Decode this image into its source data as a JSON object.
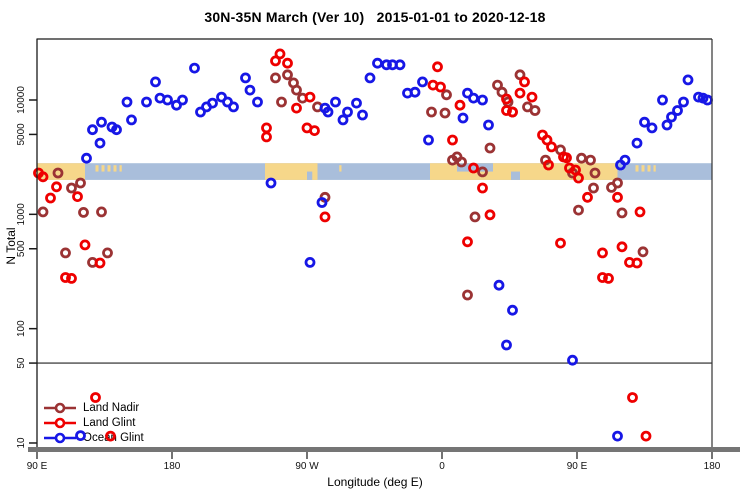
{
  "title": "30N-35N March (Ver 10)   2015-01-01 to 2020-12-18",
  "axes": {
    "y": {
      "label": "N Total",
      "ticks": [
        10,
        50,
        100,
        500,
        1000,
        5000,
        10000
      ]
    },
    "x": {
      "label": "Longitude (deg E)",
      "ticks": [
        {
          "deg": 90,
          "label": "90 E"
        },
        {
          "deg": 180,
          "label": "180"
        },
        {
          "deg": 270,
          "label": "90 W"
        },
        {
          "deg": 360,
          "label": "0"
        },
        {
          "deg": 450,
          "label": "90 E"
        },
        {
          "deg": 540,
          "label": "180"
        }
      ]
    }
  },
  "legend": {
    "items": [
      {
        "key": "land_nadir",
        "label": "Land Nadir"
      },
      {
        "key": "land_glint",
        "label": "Land Glint"
      },
      {
        "key": "ocean_glint",
        "label": "Ocean Glint"
      }
    ]
  },
  "colors": {
    "land_nadir": "#9B3334",
    "land_glint": "#EE0000",
    "ocean_glint": "#1717E6",
    "map_ocean": "#A9BEDB",
    "map_land": "#F6D78A",
    "spine": "#1a1a1a",
    "axis_bar": "#757575",
    "tick": "#444444"
  },
  "chart_data": {
    "type": "scatter",
    "title": "30N-35N March (Ver 10)   2015-01-01 to 2020-12-18",
    "xlabel": "Longitude (deg E)",
    "ylabel": "N Total",
    "x_axis_deg_range": [
      90,
      540
    ],
    "x_axis_note": "longitude axis wraps eastward: 90E, 180, 90W, 0, 90E, 180",
    "y_scale": "log10",
    "y_range": [
      8.5,
      29000
    ],
    "reference_line_y": 50,
    "map_strip": {
      "value_top": 2800,
      "value_bottom": 2000,
      "land_segments_deg": [
        [
          90,
          122
        ],
        [
          242,
          277
        ],
        [
          352,
          477
        ]
      ],
      "island_specks_deg": [
        [
          129,
          131
        ],
        [
          133,
          135
        ],
        [
          137,
          139
        ],
        [
          141,
          143
        ],
        [
          145,
          146.5
        ],
        [
          291.5,
          293
        ],
        [
          489,
          491
        ],
        [
          493,
          495
        ],
        [
          497,
          499
        ],
        [
          501,
          502.5
        ]
      ],
      "ocean_notches": [
        {
          "deg": [
            370,
            394
          ],
          "half": "top"
        },
        {
          "deg": [
            406,
            412
          ],
          "half": "bottom"
        },
        {
          "deg": [
            270,
            273.5
          ],
          "half": "bottom"
        }
      ]
    },
    "series": [
      {
        "name": "Land Nadir",
        "color_key": "land_nadir",
        "points": [
          [
            94,
            1050
          ],
          [
            104,
            2300
          ],
          [
            109,
            460
          ],
          [
            113,
            1700
          ],
          [
            119,
            1880
          ],
          [
            121,
            1040
          ],
          [
            127,
            380
          ],
          [
            133,
            1050
          ],
          [
            137,
            460
          ],
          [
            249,
            15600
          ],
          [
            253,
            9600
          ],
          [
            257,
            16600
          ],
          [
            261,
            14100
          ],
          [
            263,
            12200
          ],
          [
            267,
            10400
          ],
          [
            277,
            8700
          ],
          [
            282,
            1410
          ],
          [
            353,
            7850
          ],
          [
            362,
            7700
          ],
          [
            363,
            11100
          ],
          [
            367,
            2980
          ],
          [
            370,
            3180
          ],
          [
            373,
            2870
          ],
          [
            377,
            197
          ],
          [
            382,
            950
          ],
          [
            387,
            2350
          ],
          [
            392,
            3800
          ],
          [
            397,
            13500
          ],
          [
            400,
            11700
          ],
          [
            404,
            9600
          ],
          [
            407,
            7850
          ],
          [
            412,
            16600
          ],
          [
            417,
            8700
          ],
          [
            422,
            8100
          ],
          [
            429,
            2980
          ],
          [
            439,
            3660
          ],
          [
            447,
            2300
          ],
          [
            451,
            1090
          ],
          [
            453,
            3100
          ],
          [
            459,
            2980
          ],
          [
            461,
            1700
          ],
          [
            462,
            2300
          ],
          [
            473,
            1720
          ],
          [
            477,
            1880
          ],
          [
            480,
            1030
          ],
          [
            494,
            470
          ]
        ]
      },
      {
        "name": "Land Glint",
        "color_key": "land_glint",
        "points": [
          [
            91,
            2300
          ],
          [
            94,
            2130
          ],
          [
            99,
            1390
          ],
          [
            103,
            1740
          ],
          [
            109,
            280
          ],
          [
            113,
            275
          ],
          [
            117,
            1430
          ],
          [
            122,
            540
          ],
          [
            129,
            25
          ],
          [
            132,
            375
          ],
          [
            139,
            11.5
          ],
          [
            243,
            5700
          ],
          [
            243,
            4760
          ],
          [
            249,
            22000
          ],
          [
            252,
            25300
          ],
          [
            257,
            21000
          ],
          [
            263,
            8500
          ],
          [
            270,
            5700
          ],
          [
            272,
            10600
          ],
          [
            275,
            5400
          ],
          [
            282,
            950
          ],
          [
            354,
            13500
          ],
          [
            357,
            19500
          ],
          [
            359,
            13000
          ],
          [
            367,
            4470
          ],
          [
            372,
            9000
          ],
          [
            377,
            575
          ],
          [
            381,
            2540
          ],
          [
            387,
            1700
          ],
          [
            392,
            990
          ],
          [
            403,
            10200
          ],
          [
            403,
            8100
          ],
          [
            407,
            7850
          ],
          [
            412,
            11500
          ],
          [
            415,
            14400
          ],
          [
            420,
            10600
          ],
          [
            427,
            4940
          ],
          [
            430,
            4470
          ],
          [
            431,
            2700
          ],
          [
            433,
            3890
          ],
          [
            439,
            560
          ],
          [
            441,
            3180
          ],
          [
            443,
            3120
          ],
          [
            445,
            2540
          ],
          [
            449,
            2440
          ],
          [
            451,
            2080
          ],
          [
            457,
            1410
          ],
          [
            467,
            460
          ],
          [
            467,
            280
          ],
          [
            471,
            275
          ],
          [
            477,
            1410
          ],
          [
            480,
            520
          ],
          [
            485,
            380
          ],
          [
            487,
            25
          ],
          [
            490,
            375
          ],
          [
            492,
            1050
          ],
          [
            496,
            11.5
          ]
        ]
      },
      {
        "name": "Ocean Glint",
        "color_key": "ocean_glint",
        "points": [
          [
            119,
            11.6
          ],
          [
            123,
            3100
          ],
          [
            127,
            5500
          ],
          [
            132,
            4200
          ],
          [
            133,
            6400
          ],
          [
            140,
            5800
          ],
          [
            143,
            5500
          ],
          [
            150,
            9600
          ],
          [
            153,
            6700
          ],
          [
            163,
            9600
          ],
          [
            169,
            14400
          ],
          [
            172,
            10400
          ],
          [
            177,
            10000
          ],
          [
            183,
            9000
          ],
          [
            187,
            10000
          ],
          [
            195,
            19000
          ],
          [
            199,
            7850
          ],
          [
            203,
            8700
          ],
          [
            207,
            9400
          ],
          [
            213,
            10600
          ],
          [
            217,
            9600
          ],
          [
            221,
            8700
          ],
          [
            229,
            15600
          ],
          [
            232,
            12200
          ],
          [
            237,
            9600
          ],
          [
            246,
            1880
          ],
          [
            272,
            380
          ],
          [
            280,
            1270
          ],
          [
            282,
            8500
          ],
          [
            284,
            7850
          ],
          [
            289,
            9600
          ],
          [
            294,
            6700
          ],
          [
            297,
            7850
          ],
          [
            303,
            9400
          ],
          [
            307,
            7400
          ],
          [
            312,
            15600
          ],
          [
            317,
            21000
          ],
          [
            323,
            20300
          ],
          [
            327,
            20300
          ],
          [
            332,
            20300
          ],
          [
            337,
            11500
          ],
          [
            342,
            11700
          ],
          [
            347,
            14400
          ],
          [
            351,
            4470
          ],
          [
            374,
            6960
          ],
          [
            377,
            11500
          ],
          [
            381,
            10400
          ],
          [
            387,
            10000
          ],
          [
            391,
            6050
          ],
          [
            398,
            240
          ],
          [
            403,
            72
          ],
          [
            407,
            145
          ],
          [
            447,
            53
          ],
          [
            477,
            11.5
          ],
          [
            479,
            2700
          ],
          [
            482,
            2980
          ],
          [
            490,
            4200
          ],
          [
            495,
            6400
          ],
          [
            500,
            5700
          ],
          [
            507,
            10000
          ],
          [
            510,
            6050
          ],
          [
            513,
            7100
          ],
          [
            517,
            8100
          ],
          [
            521,
            9600
          ],
          [
            524,
            15000
          ],
          [
            531,
            10600
          ],
          [
            534,
            10400
          ],
          [
            537,
            10000
          ]
        ]
      }
    ]
  }
}
